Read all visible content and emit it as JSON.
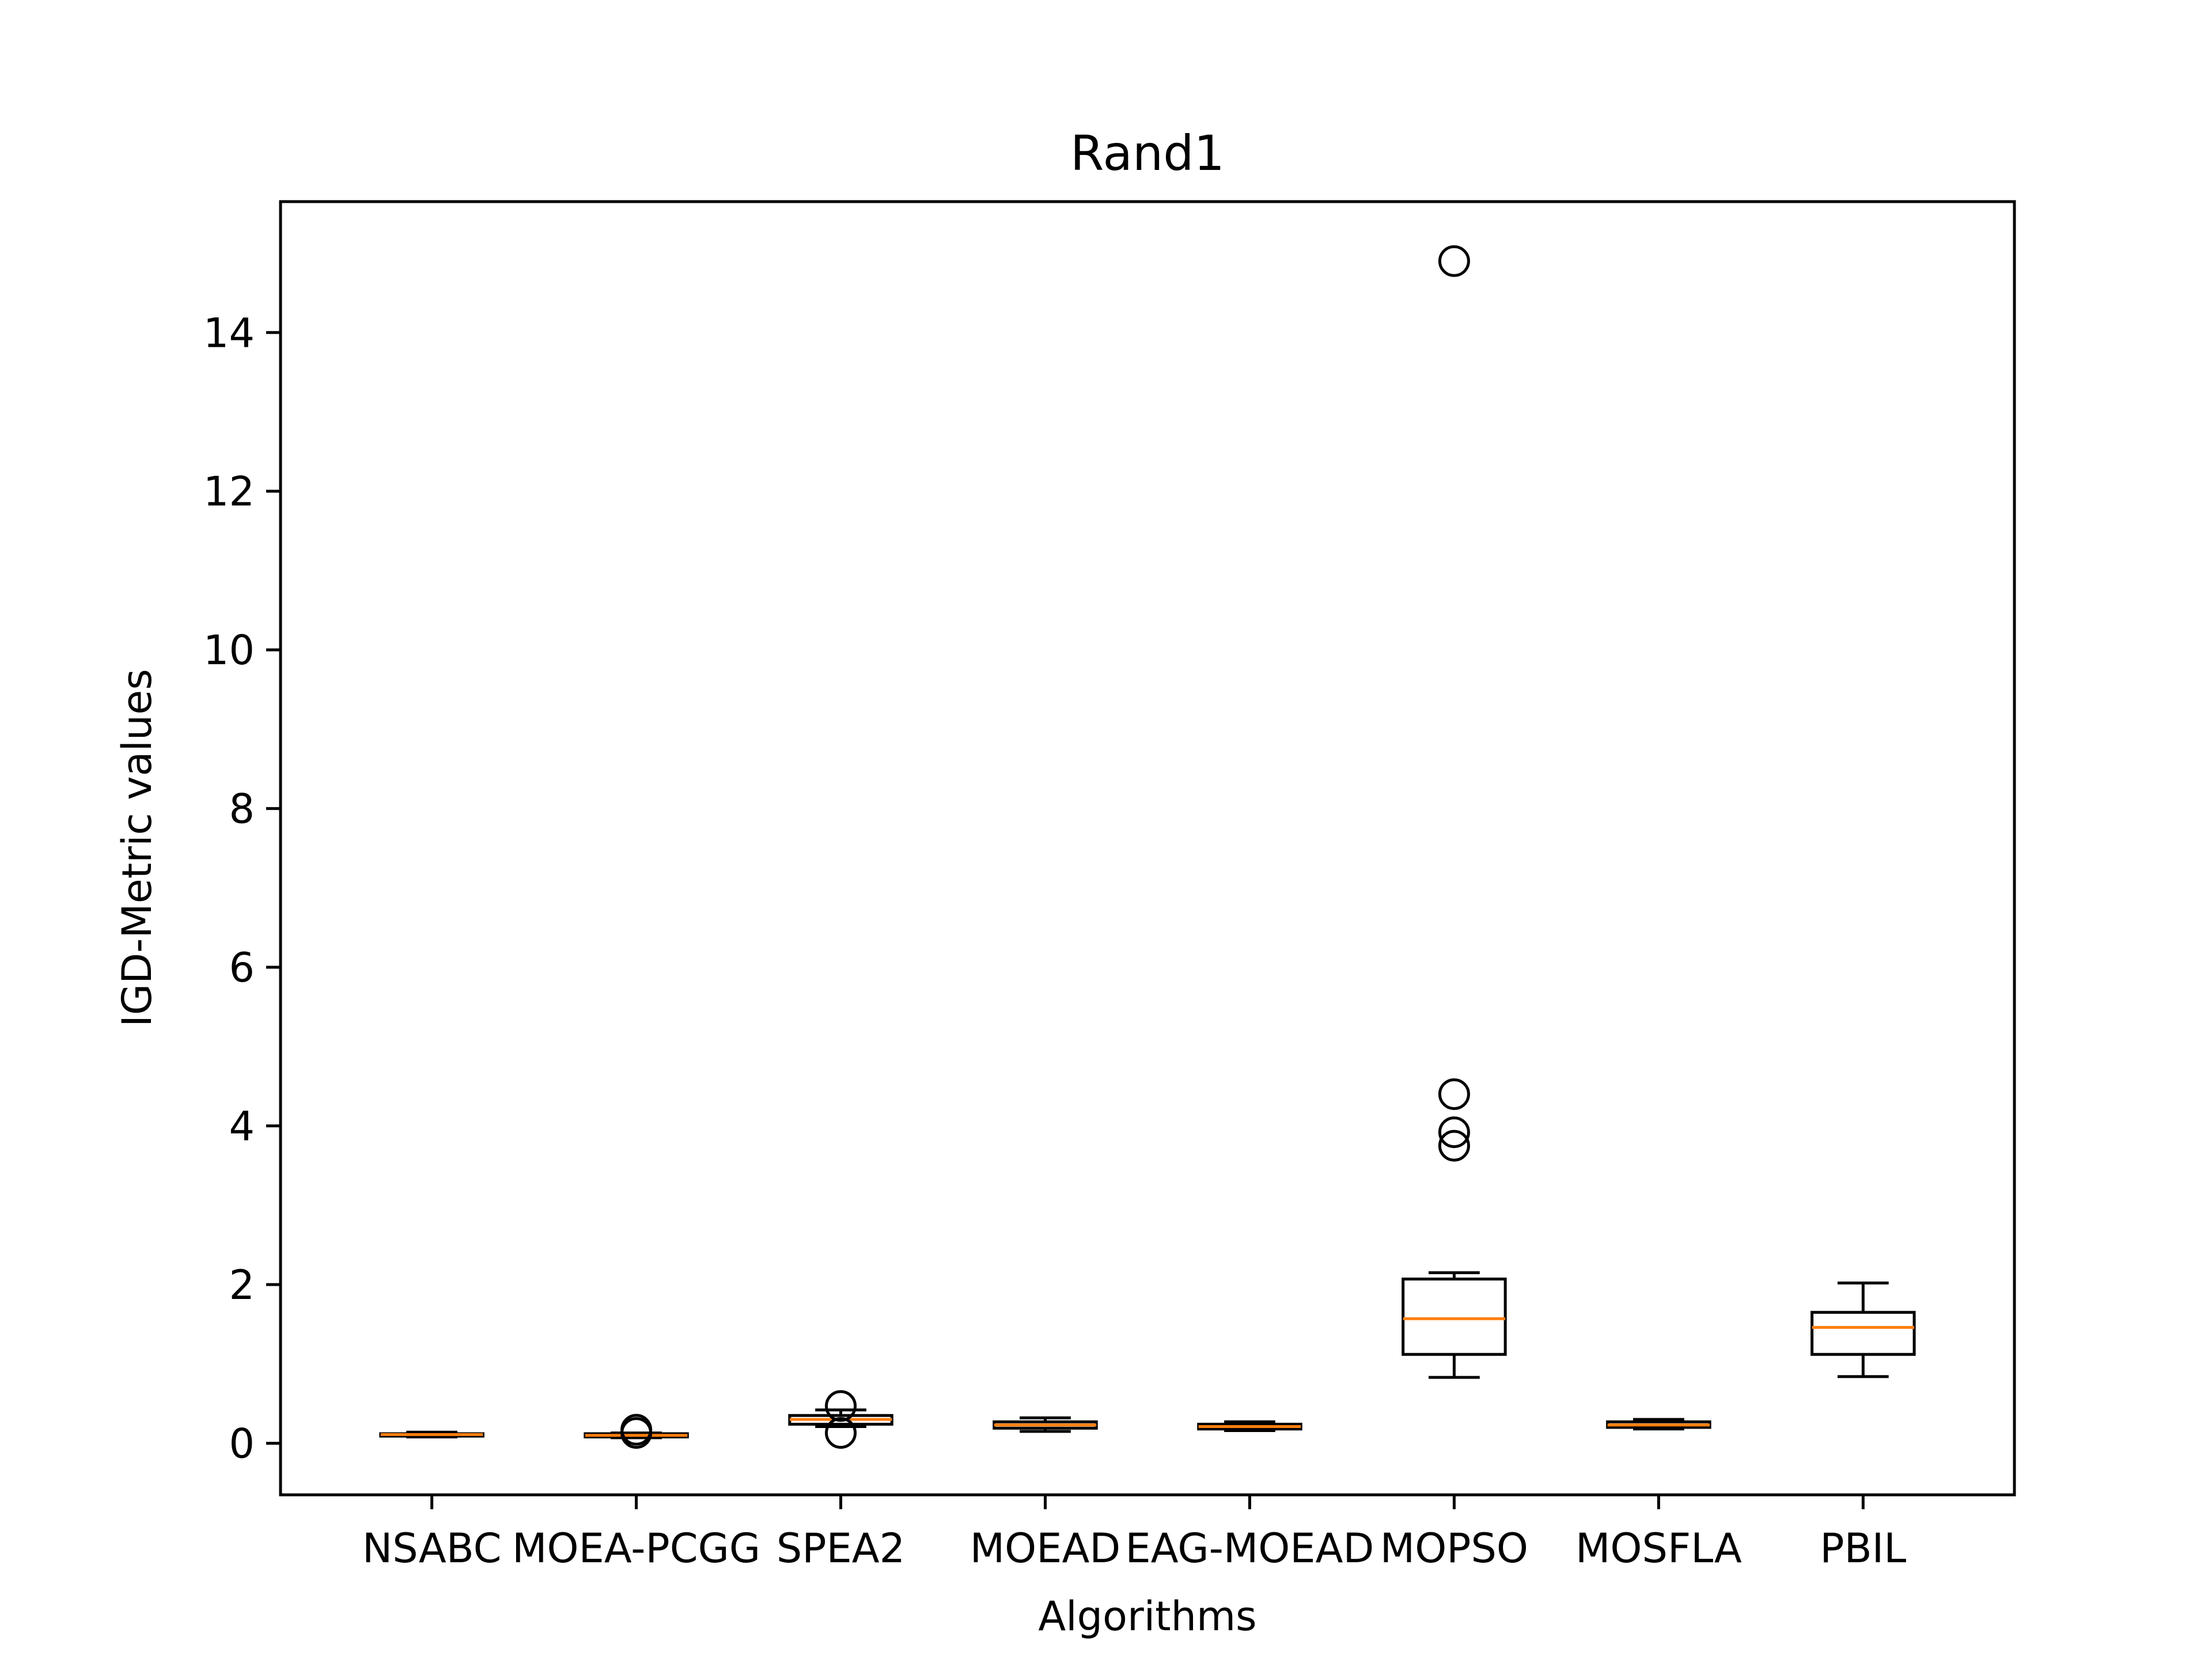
{
  "chart_data": {
    "type": "box",
    "title": "Rand1",
    "xlabel": "Algorithms",
    "ylabel": "IGD-Metric values",
    "ylim": [
      -0.65,
      15.65
    ],
    "yticks": [
      0,
      2,
      4,
      6,
      8,
      10,
      12,
      14
    ],
    "grid": false,
    "colors": {
      "box": "#000000",
      "median": "#ff7f0e",
      "background": "#ffffff"
    },
    "categories": [
      "NSABC",
      "MOEA-PCGG",
      "SPEA2",
      "MOEAD",
      "EAG-MOEAD",
      "MOPSO",
      "MOSFLA",
      "PBIL"
    ],
    "boxes": [
      {
        "whisker_low": 0.08,
        "q1": 0.09,
        "median": 0.11,
        "q3": 0.12,
        "whisker_high": 0.14,
        "outliers": []
      },
      {
        "whisker_low": 0.07,
        "q1": 0.08,
        "median": 0.1,
        "q3": 0.12,
        "whisker_high": 0.13,
        "outliers": [
          0.13,
          0.17
        ]
      },
      {
        "whisker_low": 0.21,
        "q1": 0.24,
        "median": 0.3,
        "q3": 0.35,
        "whisker_high": 0.42,
        "outliers": [
          0.47,
          0.13
        ]
      },
      {
        "whisker_low": 0.15,
        "q1": 0.19,
        "median": 0.23,
        "q3": 0.27,
        "whisker_high": 0.32,
        "outliers": []
      },
      {
        "whisker_low": 0.16,
        "q1": 0.18,
        "median": 0.21,
        "q3": 0.24,
        "whisker_high": 0.27,
        "outliers": []
      },
      {
        "whisker_low": 0.83,
        "q1": 1.12,
        "median": 1.57,
        "q3": 2.07,
        "whisker_high": 2.15,
        "outliers": [
          14.9,
          4.4,
          3.92,
          3.75
        ]
      },
      {
        "whisker_low": 0.18,
        "q1": 0.2,
        "median": 0.23,
        "q3": 0.27,
        "whisker_high": 0.3,
        "outliers": []
      },
      {
        "whisker_low": 0.84,
        "q1": 1.12,
        "median": 1.46,
        "q3": 1.65,
        "whisker_high": 2.02,
        "outliers": []
      }
    ]
  }
}
